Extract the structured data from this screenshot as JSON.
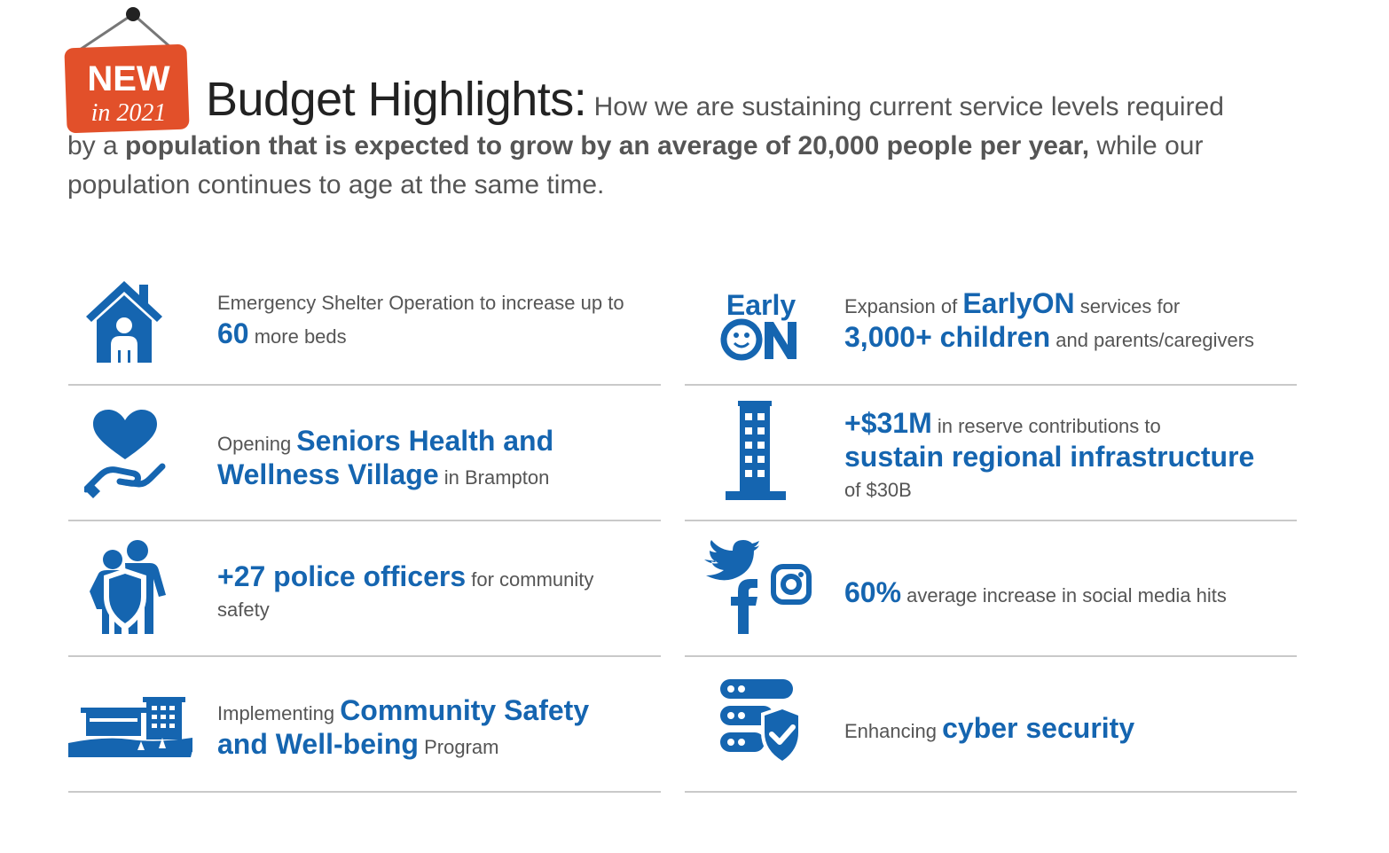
{
  "sign": {
    "word": "NEW",
    "year": "in 2021",
    "color": "#e2502a"
  },
  "heading": {
    "title": "Budget Highlights:",
    "intro": " How we are sustaining current service levels required by a ",
    "bold": "population that is expected to grow by an average of 20,000 people per year,",
    "rest": " while our population continues to age at the same time."
  },
  "accent_color": "#1565b0",
  "items": {
    "shelter": {
      "icon": "house-person-icon",
      "pre": "Emergency Shelter Operation to increase up to",
      "hl": "60",
      "post": " more beds"
    },
    "seniors": {
      "icon": "heart-hand-icon",
      "pre": "Opening ",
      "hl": "Seniors Health and Wellness Village",
      "post": " in Brampton"
    },
    "police": {
      "icon": "people-shield-icon",
      "pre": "",
      "hl": "+27 police officers",
      "post": " for community safety"
    },
    "safety": {
      "icon": "building-landscape-icon",
      "pre": "Implementing ",
      "hl": "Community Safety and Well-being",
      "post": " Program"
    },
    "earlyon": {
      "icon": "earlyon-logo-icon",
      "logo_top": "Early",
      "logo_bottom": "ON",
      "pre": "Expansion of ",
      "hl": "EarlyON",
      "mid": " services for",
      "hl2": "3,000+ children",
      "post": " and parents/caregivers"
    },
    "reserve": {
      "icon": "tower-building-icon",
      "hl": "+$31M",
      "mid": " in reserve contributions to",
      "hl2": "sustain regional infrastructure",
      "post": "of $30B"
    },
    "social": {
      "icon": "social-media-icon",
      "hl": "60%",
      "post": " average increase in social media hits"
    },
    "cyber": {
      "icon": "server-shield-icon",
      "pre": "Enhancing ",
      "hl": "cyber security"
    }
  }
}
